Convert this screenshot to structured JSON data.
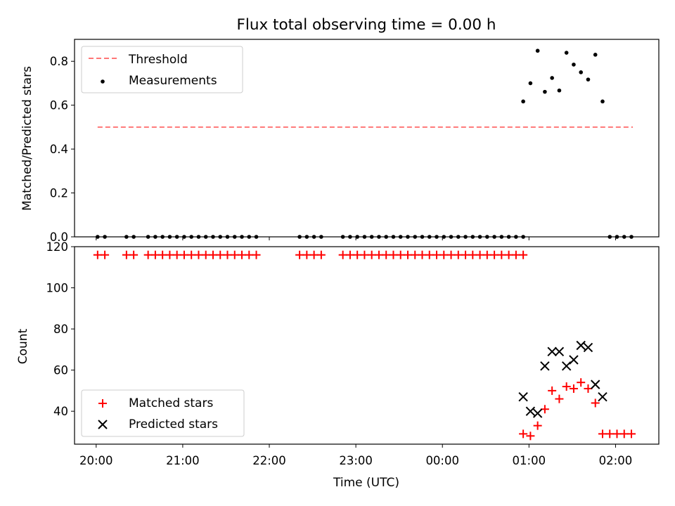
{
  "chart_data": [
    {
      "type": "scatter",
      "title": "Flux total observing time = 0.00 h",
      "ylabel": "Matched/Predicted stars",
      "xlabel": "",
      "xlim": [
        "19:45",
        "02:30"
      ],
      "ylim": [
        0,
        0.9
      ],
      "yticks": [
        "0.0",
        "0.2",
        "0.4",
        "0.6",
        "0.8"
      ],
      "legend": "top-left",
      "series": [
        {
          "name": "Threshold",
          "style": "dashed-line",
          "color": "#ff7777",
          "x": [
            "20:01",
            "02:12"
          ],
          "y": [
            0.5,
            0.5
          ]
        },
        {
          "name": "Measurements",
          "style": "dot",
          "color": "#000000",
          "x": [
            "20:01",
            "20:06",
            "20:21",
            "20:26",
            "20:36",
            "20:41",
            "20:46",
            "20:51",
            "20:56",
            "21:01",
            "21:06",
            "21:11",
            "21:16",
            "21:21",
            "21:26",
            "21:31",
            "21:36",
            "21:41",
            "21:46",
            "21:51",
            "22:21",
            "22:26",
            "22:31",
            "22:36",
            "22:51",
            "22:56",
            "23:01",
            "23:06",
            "23:11",
            "23:16",
            "23:21",
            "23:26",
            "23:31",
            "23:36",
            "23:41",
            "23:46",
            "23:51",
            "23:56",
            "00:01",
            "00:06",
            "00:11",
            "00:16",
            "00:21",
            "00:26",
            "00:31",
            "00:36",
            "00:41",
            "00:46",
            "00:51",
            "00:56",
            "00:56",
            "01:01",
            "01:06",
            "01:11",
            "01:16",
            "01:21",
            "01:26",
            "01:31",
            "01:36",
            "01:41",
            "01:46",
            "01:51",
            "01:56",
            "02:01",
            "02:06",
            "02:11"
          ],
          "y": [
            0,
            0,
            0,
            0,
            0,
            0,
            0,
            0,
            0,
            0,
            0,
            0,
            0,
            0,
            0,
            0,
            0,
            0,
            0,
            0,
            0,
            0,
            0,
            0,
            0,
            0,
            0,
            0,
            0,
            0,
            0,
            0,
            0,
            0,
            0,
            0,
            0,
            0,
            0,
            0,
            0,
            0,
            0,
            0,
            0,
            0,
            0,
            0,
            0,
            0,
            0.617,
            0.7,
            0.848,
            0.661,
            0.724,
            0.667,
            0.839,
            0.785,
            0.75,
            0.717,
            0.83,
            0.617,
            0,
            0,
            0,
            0
          ]
        }
      ]
    },
    {
      "type": "scatter",
      "title": "",
      "ylabel": "Count",
      "xlabel": "Time (UTC)",
      "xlim": [
        "19:45",
        "02:30"
      ],
      "ylim": [
        24,
        120
      ],
      "yticks": [
        "40",
        "60",
        "80",
        "100",
        "120"
      ],
      "xticks": [
        "20:00",
        "21:00",
        "22:00",
        "23:00",
        "00:00",
        "01:00",
        "02:00"
      ],
      "legend": "bottom-left",
      "series": [
        {
          "name": "Matched stars",
          "marker": "plus",
          "color": "#ff0000",
          "x": [
            "20:01",
            "20:06",
            "20:21",
            "20:26",
            "20:36",
            "20:41",
            "20:46",
            "20:51",
            "20:56",
            "21:01",
            "21:06",
            "21:11",
            "21:16",
            "21:21",
            "21:26",
            "21:31",
            "21:36",
            "21:41",
            "21:46",
            "21:51",
            "22:21",
            "22:26",
            "22:31",
            "22:36",
            "22:51",
            "22:56",
            "23:01",
            "23:06",
            "23:11",
            "23:16",
            "23:21",
            "23:26",
            "23:31",
            "23:36",
            "23:41",
            "23:46",
            "23:51",
            "23:56",
            "00:01",
            "00:06",
            "00:11",
            "00:16",
            "00:21",
            "00:26",
            "00:31",
            "00:36",
            "00:41",
            "00:46",
            "00:51",
            "00:56",
            "00:56",
            "01:01",
            "01:06",
            "01:11",
            "01:16",
            "01:21",
            "01:26",
            "01:31",
            "01:36",
            "01:41",
            "01:46",
            "01:51",
            "01:56",
            "02:01",
            "02:06",
            "02:11"
          ],
          "y": [
            116,
            116,
            116,
            116,
            116,
            116,
            116,
            116,
            116,
            116,
            116,
            116,
            116,
            116,
            116,
            116,
            116,
            116,
            116,
            116,
            116,
            116,
            116,
            116,
            116,
            116,
            116,
            116,
            116,
            116,
            116,
            116,
            116,
            116,
            116,
            116,
            116,
            116,
            116,
            116,
            116,
            116,
            116,
            116,
            116,
            116,
            116,
            116,
            116,
            116,
            29,
            28,
            33,
            41,
            50,
            46,
            52,
            51,
            54,
            51,
            44,
            29,
            29,
            29,
            29,
            29
          ]
        },
        {
          "name": "Predicted stars",
          "marker": "x",
          "color": "#000000",
          "x": [
            "00:56",
            "01:01",
            "01:06",
            "01:11",
            "01:16",
            "01:21",
            "01:26",
            "01:31",
            "01:36",
            "01:41",
            "01:46",
            "01:51"
          ],
          "y": [
            47,
            40,
            39,
            62,
            69,
            69,
            62,
            65,
            72,
            71,
            53,
            47
          ]
        }
      ]
    }
  ]
}
